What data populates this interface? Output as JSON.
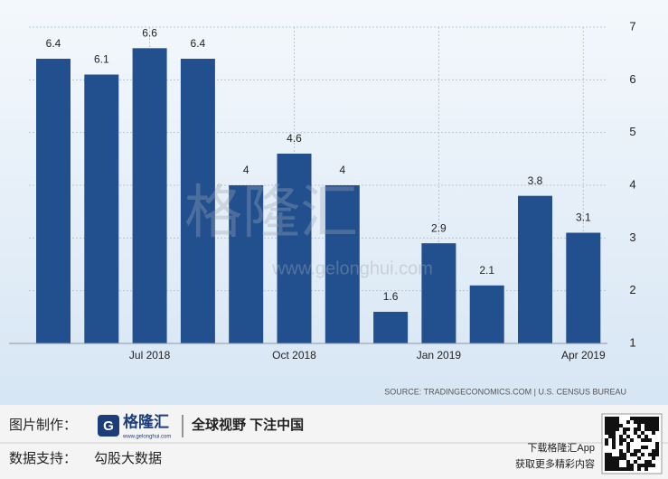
{
  "chart_data": {
    "type": "bar",
    "categories": [
      null,
      null,
      "Jul 2018",
      null,
      null,
      "Oct 2018",
      null,
      null,
      "Jan 2019",
      null,
      null,
      "Apr 2019"
    ],
    "values": [
      6.4,
      6.1,
      6.6,
      6.4,
      4,
      4.6,
      4,
      1.6,
      2.9,
      2.1,
      3.8,
      3.1
    ],
    "color": "#22508f",
    "ylim": [
      1,
      7
    ],
    "yticks": [
      1,
      2,
      3,
      4,
      5,
      6,
      7
    ],
    "grid": true,
    "y_axis_side": "right",
    "source": "SOURCE: TRADINGECONOMICS.COM | U.S. CENSUS BUREAU"
  },
  "watermark": {
    "title": "格隆汇",
    "url": "www.gelonghui.com"
  },
  "footer": {
    "made_by_label": "图片制作：",
    "logo_text": "格隆汇",
    "logo_url": "www.gelonghui.com",
    "slogan": "全球视野 下注中国",
    "data_label": "数据支持：",
    "data_provider": "勾股大数据",
    "app_line1": "下载格隆汇App",
    "app_line2": "获取更多精彩内容"
  }
}
